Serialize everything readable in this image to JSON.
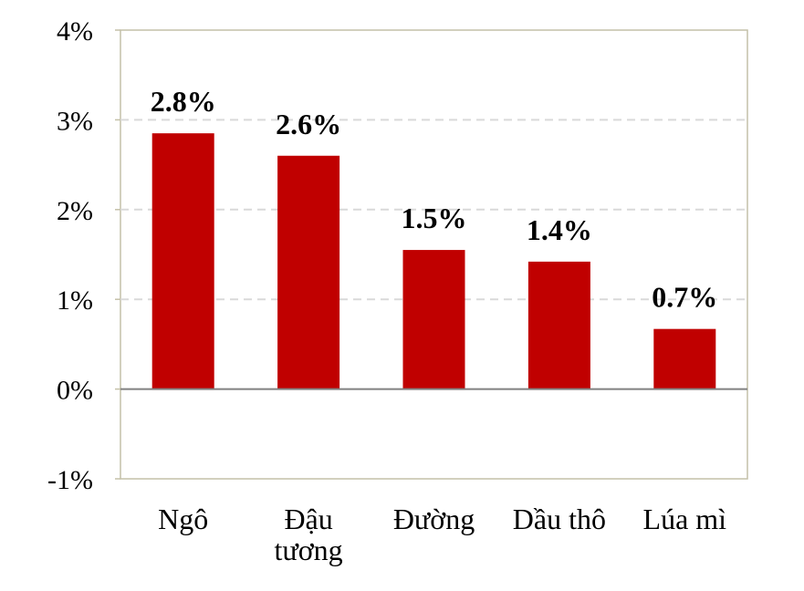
{
  "chart_data": {
    "type": "bar",
    "categories": [
      [
        "Ngô"
      ],
      [
        "Đậu",
        "tương"
      ],
      [
        "Đường"
      ],
      [
        "Dầu thô"
      ],
      [
        "Lúa mì"
      ]
    ],
    "values": [
      2.85,
      2.6,
      1.55,
      1.42,
      0.67
    ],
    "data_labels": [
      "2.8%",
      "2.6%",
      "1.5%",
      "1.4%",
      "0.7%"
    ],
    "ylim": [
      -1,
      4
    ],
    "yticks": [
      -1,
      0,
      1,
      2,
      3,
      4
    ],
    "ytick_labels": [
      "-1%",
      "0%",
      "1%",
      "2%",
      "3%",
      "4%"
    ],
    "title": "",
    "xlabel": "",
    "ylabel": "",
    "grid": "horizontal dashed",
    "legend": "none",
    "colors": {
      "bar": "#c00000",
      "grid": "#d9d9d9",
      "zero_line": "#808080",
      "plot_border": "#c4c0a8"
    }
  }
}
